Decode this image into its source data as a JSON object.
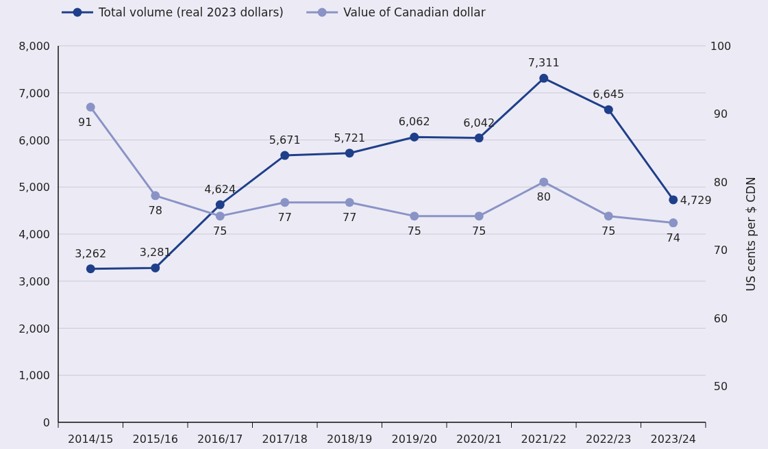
{
  "chart_data": {
    "type": "line",
    "categories": [
      "2014/15",
      "2015/16",
      "2016/17",
      "2017/18",
      "2018/19",
      "2019/20",
      "2020/21",
      "2021/22",
      "2022/23",
      "2023/24"
    ],
    "series": [
      {
        "name": "Total volume (real 2023 dollars)",
        "color": "#1f3f8a",
        "values": [
          3262,
          3281,
          4624,
          5671,
          5721,
          6062,
          6042,
          7311,
          6645,
          4729
        ],
        "value_labels": [
          "3,262",
          "3,281",
          "4,624",
          "5,671",
          "5,721",
          "6,062",
          "6,042",
          "7,311",
          "6,645",
          "4,729"
        ]
      },
      {
        "name": "Value of Canadian dollar",
        "color": "#8a93c6",
        "axis": "y2",
        "values": [
          91,
          78,
          75,
          77,
          77,
          75,
          75,
          80,
          75,
          74
        ]
      }
    ],
    "ylim": [
      0,
      8000
    ],
    "yticks": [
      {
        "value": 0,
        "label": "0"
      },
      {
        "value": 1000,
        "label": "1,000"
      },
      {
        "value": 2000,
        "label": "2,000"
      },
      {
        "value": 3000,
        "label": "3,000"
      },
      {
        "value": 4000,
        "label": "4,000"
      },
      {
        "value": 5000,
        "label": "5,000"
      },
      {
        "value": 6000,
        "label": "6,000"
      },
      {
        "value": 7000,
        "label": "7,000"
      },
      {
        "value": 8000,
        "label": "8,000"
      }
    ],
    "y2lim": [
      44.7,
      100
    ],
    "y2ticks": [
      50,
      60,
      70,
      80,
      90,
      100
    ],
    "y2label": "US cents per $ CDN",
    "grid": "y",
    "legend": "top",
    "marker": "circle",
    "line_style": "solid",
    "data_labels": true
  }
}
